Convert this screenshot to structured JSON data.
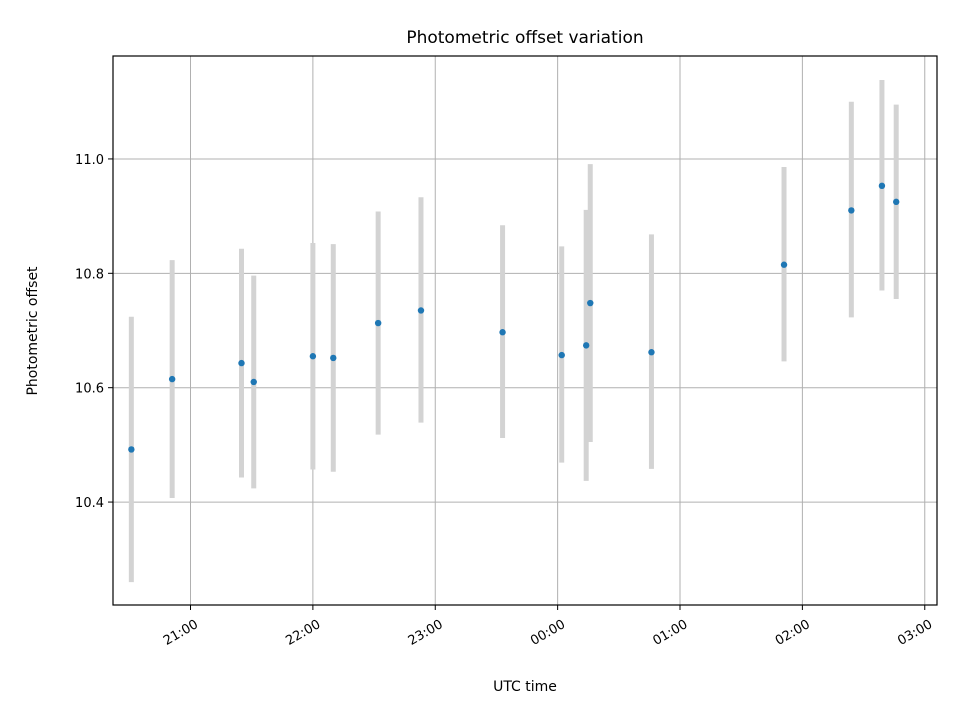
{
  "chart_data": {
    "type": "scatter",
    "title": "Photometric offset variation",
    "xlabel": "UTC time",
    "ylabel": "Photometric offset",
    "x_axis_kind": "time",
    "xlim": [
      "20:22",
      "03:06"
    ],
    "ylim": [
      10.22,
      11.18
    ],
    "xticks": [
      {
        "time": "21:00",
        "label": "21:00"
      },
      {
        "time": "22:00",
        "label": "22:00"
      },
      {
        "time": "23:00",
        "label": "23:00"
      },
      {
        "time": "00:00",
        "label": "00:00"
      },
      {
        "time": "01:00",
        "label": "01:00"
      },
      {
        "time": "02:00",
        "label": "02:00"
      },
      {
        "time": "03:00",
        "label": "03:00"
      }
    ],
    "yticks": [
      {
        "value": 10.4,
        "label": "10.4"
      },
      {
        "value": 10.6,
        "label": "10.6"
      },
      {
        "value": 10.8,
        "label": "10.8"
      },
      {
        "value": 11.0,
        "label": "11.0"
      }
    ],
    "grid": true,
    "point_color": "#1f77b4",
    "errorbar_color": "#d3d3d3",
    "points": [
      {
        "time": "20:31",
        "y": 10.492,
        "lo": 10.26,
        "hi": 10.724
      },
      {
        "time": "20:51",
        "y": 10.615,
        "lo": 10.407,
        "hi": 10.823
      },
      {
        "time": "21:25",
        "y": 10.643,
        "lo": 10.443,
        "hi": 10.843
      },
      {
        "time": "21:31",
        "y": 10.61,
        "lo": 10.424,
        "hi": 10.796
      },
      {
        "time": "22:00",
        "y": 10.655,
        "lo": 10.457,
        "hi": 10.853
      },
      {
        "time": "22:10",
        "y": 10.652,
        "lo": 10.453,
        "hi": 10.851
      },
      {
        "time": "22:32",
        "y": 10.713,
        "lo": 10.518,
        "hi": 10.908
      },
      {
        "time": "22:53",
        "y": 10.735,
        "lo": 10.539,
        "hi": 10.933
      },
      {
        "time": "23:33",
        "y": 10.697,
        "lo": 10.512,
        "hi": 10.884
      },
      {
        "time": "00:02",
        "y": 10.657,
        "lo": 10.469,
        "hi": 10.847
      },
      {
        "time": "00:14",
        "y": 10.674,
        "lo": 10.437,
        "hi": 10.911
      },
      {
        "time": "00:16",
        "y": 10.748,
        "lo": 10.505,
        "hi": 10.991
      },
      {
        "time": "00:46",
        "y": 10.662,
        "lo": 10.458,
        "hi": 10.868
      },
      {
        "time": "01:51",
        "y": 10.815,
        "lo": 10.646,
        "hi": 10.986
      },
      {
        "time": "02:24",
        "y": 10.91,
        "lo": 10.723,
        "hi": 11.1
      },
      {
        "time": "02:39",
        "y": 10.953,
        "lo": 10.77,
        "hi": 11.138
      },
      {
        "time": "02:46",
        "y": 10.925,
        "lo": 10.755,
        "hi": 11.095
      }
    ]
  }
}
